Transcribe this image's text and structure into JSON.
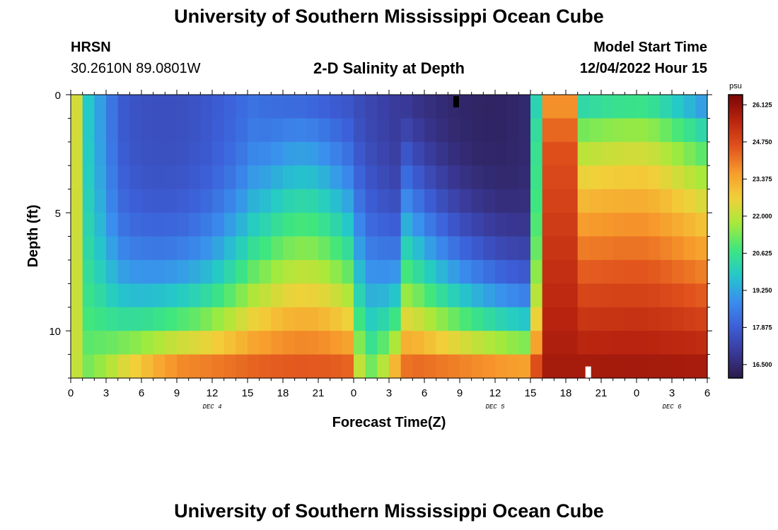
{
  "page": {
    "title_top": "University of Southern Mississippi Ocean Cube",
    "title_bottom": "University of Southern Mississippi Ocean Cube",
    "station_id": "HRSN",
    "station_coords": "30.2610N  89.0801W",
    "plot_title": "2-D Salinity at Depth",
    "model_start_label": "Model Start Time",
    "model_start_value": "12/04/2022 Hour 15"
  },
  "colors": {
    "ramp": [
      "#2b1a4a",
      "#3a3a9a",
      "#3c5fd8",
      "#3a8fee",
      "#24c9c9",
      "#3ee67f",
      "#a6ea3a",
      "#f2d03a",
      "#f79a2c",
      "#e0501c",
      "#b8240f",
      "#7a0606"
    ]
  },
  "chart_data": {
    "type": "heatmap",
    "title": "2-D Salinity at Depth",
    "xlabel": "Forecast Time(Z)",
    "ylabel": "Depth (ft)",
    "x_tick_labels": [
      "0",
      "3",
      "6",
      "9",
      "12",
      "15",
      "18",
      "21",
      "0",
      "3",
      "6",
      "9",
      "12",
      "15",
      "18",
      "21",
      "0",
      "3",
      "6"
    ],
    "x_range_hours": [
      0,
      54
    ],
    "date_labels": [
      {
        "text": "DEC 4",
        "hour": 12
      },
      {
        "text": "DEC 5",
        "hour": 36
      },
      {
        "text": "DEC 6",
        "hour": 51
      }
    ],
    "y_ticks": [
      0,
      5,
      10
    ],
    "y_range_ft": [
      0,
      12
    ],
    "depth_levels_ft": [
      0.5,
      1.5,
      2.5,
      3.5,
      4.5,
      5.5,
      6.5,
      7.5,
      8.5,
      9.5,
      10.5,
      11.5
    ],
    "time_steps_hours": 54,
    "colorbar": {
      "unit": "psu",
      "min": 16.0,
      "max": 26.5,
      "tick_labels": [
        "26.125",
        "24.750",
        "23.375",
        "22.000",
        "20.625",
        "19.250",
        "17.875",
        "16.500"
      ],
      "tick_values": [
        26.125,
        24.75,
        23.375,
        22.0,
        20.625,
        19.25,
        17.875,
        16.5
      ]
    },
    "markers": [
      {
        "name": "surface-marker",
        "hour": 32.7,
        "depth_ft": 0.3,
        "color": "#000000"
      },
      {
        "name": "bottom-marker",
        "hour": 43.9,
        "depth_ft": 11.75,
        "color": "#ffffff"
      }
    ],
    "approx_structure_note": "Low salinity (~16.5-18 psu) in upper layers through Dec 5 ~15Z; high salinity (~25-26 psu) near bottom; abrupt rise after ~16Z Dec 5 throughout column."
  }
}
